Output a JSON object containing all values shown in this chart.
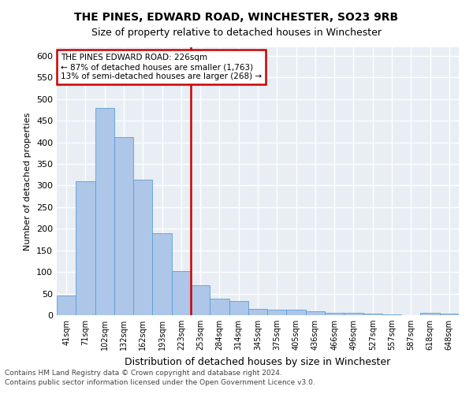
{
  "title": "THE PINES, EDWARD ROAD, WINCHESTER, SO23 9RB",
  "subtitle": "Size of property relative to detached houses in Winchester",
  "xlabel": "Distribution of detached houses by size in Winchester",
  "ylabel": "Number of detached properties",
  "categories": [
    "41sqm",
    "71sqm",
    "102sqm",
    "132sqm",
    "162sqm",
    "193sqm",
    "223sqm",
    "253sqm",
    "284sqm",
    "314sqm",
    "345sqm",
    "375sqm",
    "405sqm",
    "436sqm",
    "466sqm",
    "496sqm",
    "527sqm",
    "557sqm",
    "587sqm",
    "618sqm",
    "648sqm"
  ],
  "values": [
    46,
    310,
    480,
    413,
    313,
    190,
    102,
    70,
    38,
    33,
    14,
    13,
    13,
    10,
    6,
    5,
    4,
    1,
    0,
    5,
    3
  ],
  "bar_color": "#aec6e8",
  "bar_edge_color": "#5a9fd4",
  "vline_color": "#cc0000",
  "annotation_text": "THE PINES EDWARD ROAD: 226sqm\n← 87% of detached houses are smaller (1,763)\n13% of semi-detached houses are larger (268) →",
  "annotation_box_color": "#cc0000",
  "ylim": [
    0,
    620
  ],
  "yticks": [
    0,
    50,
    100,
    150,
    200,
    250,
    300,
    350,
    400,
    450,
    500,
    550,
    600
  ],
  "background_color": "#e8eef4",
  "grid_color": "#ffffff",
  "footer_line1": "Contains HM Land Registry data © Crown copyright and database right 2024.",
  "footer_line2": "Contains public sector information licensed under the Open Government Licence v3.0."
}
